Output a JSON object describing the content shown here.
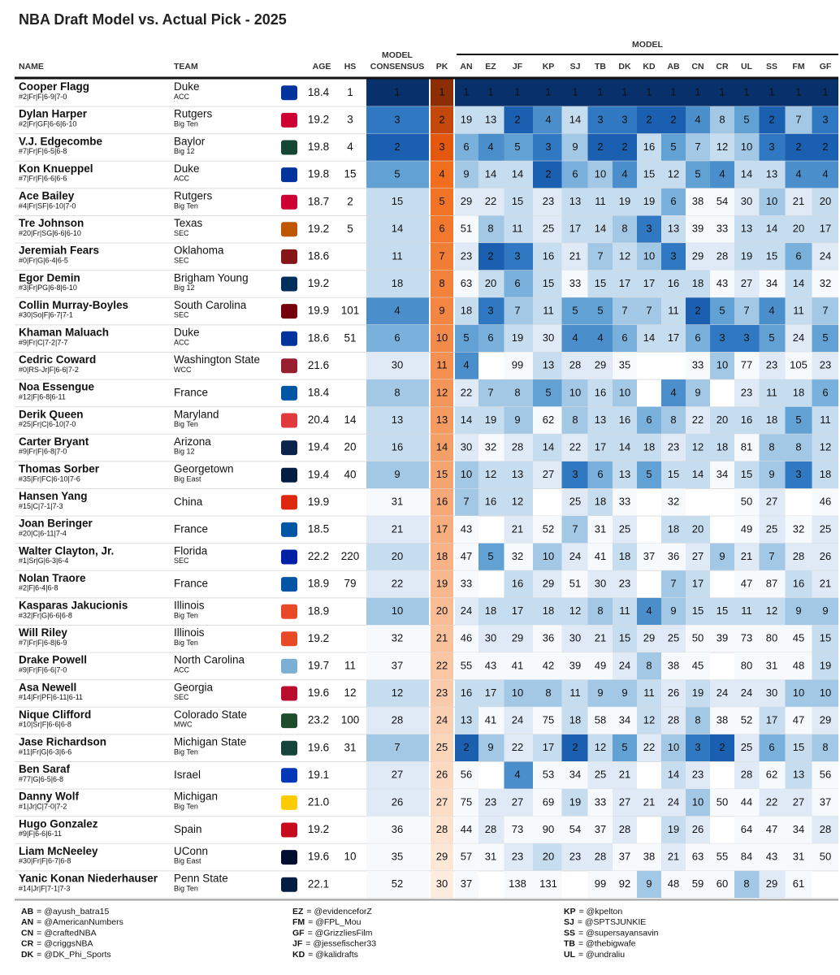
{
  "header": {
    "title": "NBA Draft Model vs. Actual Pick - 2025"
  },
  "table": {
    "columns": {
      "name": "NAME",
      "team": "TEAM",
      "age": "AGE",
      "hs": "HS",
      "consensus": [
        "MODEL",
        "CONSENSUS"
      ],
      "pick": "PK",
      "group": "MODEL",
      "models": [
        "AN",
        "EZ",
        "JF",
        "KP",
        "SJ",
        "TB",
        "DK",
        "KD",
        "AB",
        "CN",
        "CR",
        "UL",
        "SS",
        "FM",
        "GF"
      ]
    },
    "rows": [
      {
        "name": "Cooper Flagg",
        "info": "#2|Fr|F|6-9|7-0",
        "team": "Duke",
        "conf": "ACC",
        "logo": "#00339b",
        "age": "18.4",
        "hs": 1,
        "consensus": 1,
        "pick": 1,
        "models": [
          1,
          1,
          1,
          1,
          1,
          1,
          1,
          1,
          1,
          1,
          1,
          1,
          1,
          1,
          1
        ]
      },
      {
        "name": "Dylan Harper",
        "info": "#2|Fr|GF|6-6|6-10",
        "team": "Rutgers",
        "conf": "Big Ten",
        "logo": "#cc0033",
        "age": "19.2",
        "hs": 3,
        "consensus": 3,
        "pick": 2,
        "models": [
          19,
          13,
          2,
          4,
          14,
          3,
          3,
          2,
          2,
          4,
          8,
          5,
          2,
          7,
          3
        ]
      },
      {
        "name": "V.J. Edgecombe",
        "info": "#7|Fr|F|6-5|6-8",
        "team": "Baylor",
        "conf": "Big 12",
        "logo": "#154734",
        "age": "19.8",
        "hs": 4,
        "consensus": 2,
        "pick": 3,
        "models": [
          6,
          4,
          5,
          3,
          9,
          2,
          2,
          16,
          5,
          7,
          12,
          10,
          3,
          2,
          2
        ]
      },
      {
        "name": "Kon Knueppel",
        "info": "#7|Fr|F|6-6|6-6",
        "team": "Duke",
        "conf": "ACC",
        "logo": "#00339b",
        "age": "19.8",
        "hs": 15,
        "consensus": 5,
        "pick": 4,
        "models": [
          9,
          14,
          14,
          2,
          6,
          10,
          4,
          15,
          12,
          5,
          4,
          14,
          13,
          4,
          4
        ]
      },
      {
        "name": "Ace Bailey",
        "info": "#4|Fr|SF|6-10|7-0",
        "team": "Rutgers",
        "conf": "Big Ten",
        "logo": "#cc0033",
        "age": "18.7",
        "hs": 2,
        "consensus": 15,
        "pick": 5,
        "models": [
          29,
          22,
          15,
          23,
          13,
          11,
          19,
          19,
          6,
          38,
          54,
          30,
          10,
          21,
          20
        ]
      },
      {
        "name": "Tre Johnson",
        "info": "#20|Fr|SG|6-6|6-10",
        "team": "Texas",
        "conf": "SEC",
        "logo": "#bf5700",
        "age": "19.2",
        "hs": 5,
        "consensus": 14,
        "pick": 6,
        "models": [
          51,
          8,
          11,
          25,
          17,
          14,
          8,
          3,
          13,
          39,
          33,
          13,
          14,
          20,
          17
        ]
      },
      {
        "name": "Jeremiah Fears",
        "info": "#0|Fr|G|6-4|6-5",
        "team": "Oklahoma",
        "conf": "SEC",
        "logo": "#841617",
        "age": "18.6",
        "hs": null,
        "consensus": 11,
        "pick": 7,
        "models": [
          23,
          2,
          3,
          16,
          21,
          7,
          12,
          10,
          3,
          29,
          28,
          19,
          15,
          6,
          24
        ]
      },
      {
        "name": "Egor Demin",
        "info": "#3|Fr|PG|6-8|6-10",
        "team": "Brigham Young",
        "conf": "Big 12",
        "logo": "#002e5d",
        "age": "19.2",
        "hs": null,
        "consensus": 18,
        "pick": 8,
        "models": [
          63,
          20,
          6,
          15,
          33,
          15,
          17,
          17,
          16,
          18,
          43,
          27,
          34,
          14,
          32
        ]
      },
      {
        "name": "Collin Murray-Boyles",
        "info": "#30|So|F|6-7|7-1",
        "team": "South Carolina",
        "conf": "SEC",
        "logo": "#73000a",
        "age": "19.9",
        "hs": 101,
        "consensus": 4,
        "pick": 9,
        "models": [
          18,
          3,
          7,
          11,
          5,
          5,
          7,
          7,
          11,
          2,
          5,
          7,
          4,
          11,
          7
        ]
      },
      {
        "name": "Khaman Maluach",
        "info": "#9|Fr|C|7-2|7-7",
        "team": "Duke",
        "conf": "ACC",
        "logo": "#00339b",
        "age": "18.6",
        "hs": 51,
        "consensus": 6,
        "pick": 10,
        "models": [
          5,
          6,
          19,
          30,
          4,
          4,
          6,
          14,
          17,
          6,
          3,
          3,
          5,
          24,
          5
        ]
      },
      {
        "name": "Cedric Coward",
        "info": "#0|RS-Jr|F|6-6|7-2",
        "team": "Washington State",
        "conf": "WCC",
        "logo": "#981e32",
        "age": "21.6",
        "hs": null,
        "consensus": 30,
        "pick": 11,
        "models": [
          4,
          null,
          99,
          13,
          28,
          29,
          35,
          null,
          null,
          33,
          10,
          77,
          23,
          105,
          23
        ]
      },
      {
        "name": "Noa Essengue",
        "info": "#12|F|6-8|6-11",
        "team": "France",
        "logo": "#0055a4",
        "age": "18.4",
        "hs": null,
        "consensus": 8,
        "pick": 12,
        "models": [
          22,
          7,
          8,
          5,
          10,
          16,
          10,
          null,
          4,
          9,
          null,
          23,
          11,
          18,
          6
        ]
      },
      {
        "name": "Derik Queen",
        "info": "#25|Fr|C|6-10|7-0",
        "team": "Maryland",
        "conf": "Big Ten",
        "logo": "#e03a3e",
        "age": "20.4",
        "hs": 14,
        "consensus": 13,
        "pick": 13,
        "models": [
          14,
          19,
          9,
          62,
          8,
          13,
          16,
          6,
          8,
          22,
          20,
          16,
          18,
          5,
          11
        ]
      },
      {
        "name": "Carter Bryant",
        "info": "#9|Fr|F|6-8|7-0",
        "team": "Arizona",
        "conf": "Big 12",
        "logo": "#0c234b",
        "age": "19.4",
        "hs": 20,
        "consensus": 16,
        "pick": 14,
        "models": [
          30,
          32,
          28,
          14,
          22,
          17,
          14,
          18,
          23,
          12,
          18,
          81,
          8,
          8,
          12
        ]
      },
      {
        "name": "Thomas Sorber",
        "info": "#35|Fr|FC|6-10|7-6",
        "team": "Georgetown",
        "conf": "Big East",
        "logo": "#041e42",
        "age": "19.4",
        "hs": 40,
        "consensus": 9,
        "pick": 15,
        "models": [
          10,
          12,
          13,
          27,
          3,
          6,
          13,
          5,
          15,
          14,
          34,
          15,
          9,
          3,
          18
        ]
      },
      {
        "name": "Hansen Yang",
        "info": "#15|C|7-1|7-3",
        "team": "China",
        "logo": "#de2910",
        "age": "19.9",
        "hs": null,
        "consensus": 31,
        "pick": 16,
        "models": [
          7,
          16,
          12,
          null,
          25,
          18,
          33,
          null,
          32,
          null,
          null,
          50,
          27,
          null,
          46
        ]
      },
      {
        "name": "Joan Beringer",
        "info": "#20|C|6-11|7-4",
        "team": "France",
        "logo": "#0055a4",
        "age": "18.5",
        "hs": null,
        "consensus": 21,
        "pick": 17,
        "models": [
          43,
          null,
          21,
          52,
          7,
          31,
          25,
          null,
          18,
          20,
          null,
          49,
          25,
          32,
          25
        ]
      },
      {
        "name": "Walter Clayton, Jr.",
        "info": "#1|Sr|G|6-3|6-4",
        "team": "Florida",
        "conf": "SEC",
        "logo": "#0021a5",
        "age": "22.2",
        "hs": 220,
        "consensus": 20,
        "pick": 18,
        "models": [
          47,
          5,
          32,
          10,
          24,
          41,
          18,
          37,
          36,
          27,
          9,
          21,
          7,
          28,
          26
        ]
      },
      {
        "name": "Nolan Traore",
        "info": "#2|F|6-4|6-8",
        "team": "France",
        "logo": "#0055a4",
        "age": "18.9",
        "hs": 79,
        "consensus": 22,
        "pick": 19,
        "models": [
          33,
          null,
          16,
          29,
          51,
          30,
          23,
          null,
          7,
          17,
          null,
          47,
          87,
          16,
          21
        ]
      },
      {
        "name": "Kasparas Jakucionis",
        "info": "#32|Fr|G|6-6|6-8",
        "team": "Illinois",
        "conf": "Big Ten",
        "logo": "#e84a27",
        "age": "18.9",
        "hs": null,
        "consensus": 10,
        "pick": 20,
        "models": [
          24,
          18,
          17,
          18,
          12,
          8,
          11,
          4,
          9,
          15,
          15,
          11,
          12,
          9,
          9
        ]
      },
      {
        "name": "Will Riley",
        "info": "#7|Fr|F|6-8|6-9",
        "team": "Illinois",
        "conf": "Big Ten",
        "logo": "#e84a27",
        "age": "19.2",
        "hs": null,
        "consensus": 32,
        "pick": 21,
        "models": [
          46,
          30,
          29,
          36,
          30,
          21,
          15,
          29,
          25,
          50,
          39,
          73,
          80,
          45,
          15
        ]
      },
      {
        "name": "Drake Powell",
        "info": "#9|Fr|F|6-6|7-0",
        "team": "North Carolina",
        "conf": "ACC",
        "logo": "#7bafd4",
        "age": "19.7",
        "hs": 11,
        "consensus": 37,
        "pick": 22,
        "models": [
          55,
          43,
          41,
          42,
          39,
          49,
          24,
          8,
          38,
          45,
          null,
          80,
          31,
          48,
          19
        ]
      },
      {
        "name": "Asa Newell",
        "info": "#14|Fr|PF|6-11|6-11",
        "team": "Georgia",
        "conf": "SEC",
        "logo": "#ba0c2f",
        "age": "19.6",
        "hs": 12,
        "consensus": 12,
        "pick": 23,
        "models": [
          16,
          17,
          10,
          8,
          11,
          9,
          9,
          11,
          26,
          19,
          24,
          24,
          30,
          10,
          10
        ]
      },
      {
        "name": "Nique Clifford",
        "info": "#10|Sr|F|6-6|6-8",
        "team": "Colorado State",
        "conf": "MWC",
        "logo": "#1e4d2b",
        "age": "23.2",
        "hs": 100,
        "consensus": 28,
        "pick": 24,
        "models": [
          13,
          41,
          24,
          75,
          18,
          58,
          34,
          12,
          28,
          8,
          38,
          52,
          17,
          47,
          29
        ]
      },
      {
        "name": "Jase Richardson",
        "info": "#11|Fr|G|6-3|6-6",
        "team": "Michigan State",
        "conf": "Big Ten",
        "logo": "#18453b",
        "age": "19.6",
        "hs": 31,
        "consensus": 7,
        "pick": 25,
        "models": [
          2,
          9,
          22,
          17,
          2,
          12,
          5,
          22,
          10,
          3,
          2,
          25,
          6,
          15,
          8
        ]
      },
      {
        "name": "Ben Saraf",
        "info": "#77|G|6-5|6-8",
        "team": "Israel",
        "logo": "#0038b8",
        "age": "19.1",
        "hs": null,
        "consensus": 27,
        "pick": 26,
        "models": [
          56,
          null,
          4,
          53,
          34,
          25,
          21,
          null,
          14,
          23,
          null,
          28,
          62,
          13,
          56
        ]
      },
      {
        "name": "Danny Wolf",
        "info": "#1|Jr|C|7-0|7-2",
        "team": "Michigan",
        "conf": "Big Ten",
        "logo": "#ffcb05",
        "age": "21.0",
        "hs": null,
        "consensus": 26,
        "pick": 27,
        "models": [
          75,
          23,
          27,
          69,
          19,
          33,
          27,
          21,
          24,
          10,
          50,
          44,
          22,
          27,
          37
        ]
      },
      {
        "name": "Hugo Gonzalez",
        "info": "#9|F|6-6|6-11",
        "team": "Spain",
        "logo": "#c60b1e",
        "age": "19.2",
        "hs": null,
        "consensus": 36,
        "pick": 28,
        "models": [
          44,
          28,
          73,
          90,
          54,
          37,
          28,
          null,
          19,
          26,
          null,
          64,
          47,
          34,
          28
        ]
      },
      {
        "name": "Liam McNeeley",
        "info": "#30|Fr|F|6-7|6-8",
        "team": "UConn",
        "conf": "Big East",
        "logo": "#000e2f",
        "age": "19.6",
        "hs": 10,
        "consensus": 35,
        "pick": 29,
        "models": [
          57,
          31,
          23,
          20,
          23,
          28,
          37,
          38,
          21,
          63,
          55,
          84,
          43,
          31,
          50
        ]
      },
      {
        "name": "Yanic Konan Niederhauser",
        "info": "#14|Jr|F|7-1|7-3",
        "team": "Penn State",
        "conf": "Big Ten",
        "logo": "#041e42",
        "age": "22.1",
        "hs": null,
        "consensus": 52,
        "pick": 30,
        "models": [
          37,
          null,
          138,
          131,
          null,
          99,
          92,
          9,
          48,
          59,
          60,
          8,
          29,
          61,
          null
        ]
      }
    ]
  },
  "legend": [
    [
      {
        "code": "AB",
        "text": "= @ayush_batra15"
      },
      {
        "code": "AN",
        "text": "= @AmericanNumbers"
      },
      {
        "code": "CN",
        "text": "= @craftedNBA"
      },
      {
        "code": "CR",
        "text": "= @criggsNBA"
      },
      {
        "code": "DK",
        "text": "= @DK_Phi_Sports"
      }
    ],
    [
      {
        "code": "EZ",
        "text": "= @evidenceforZ"
      },
      {
        "code": "FM",
        "text": "= @FPL_Mou"
      },
      {
        "code": "GF",
        "text": "= @GrizzliesFilm"
      },
      {
        "code": "JF",
        "text": "= @jessefischer33"
      },
      {
        "code": "KD",
        "text": "= @kalidrafts"
      }
    ],
    [
      {
        "code": "KP",
        "text": "= @kpelton"
      },
      {
        "code": "SJ",
        "text": "= @SPTSJUNKIE"
      },
      {
        "code": "SS",
        "text": "= @supersayansavin"
      },
      {
        "code": "TB",
        "text": "= @thebigwafe"
      },
      {
        "code": "UL",
        "text": "= @undraliu"
      }
    ]
  ]
}
